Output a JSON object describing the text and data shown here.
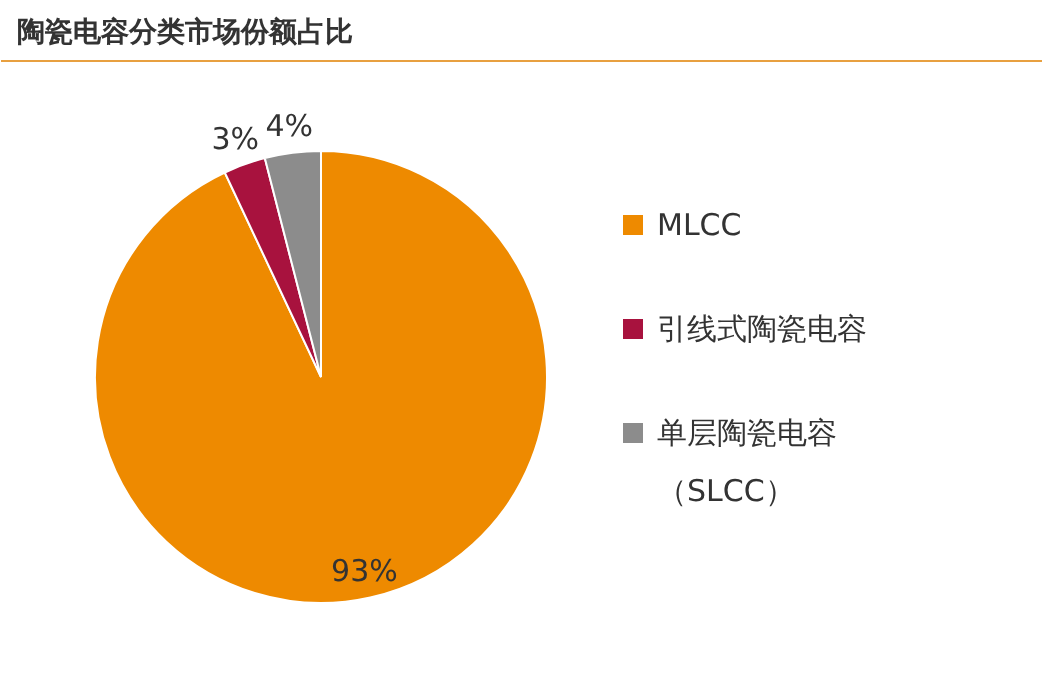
{
  "chart_data": {
    "type": "pie",
    "title": "陶瓷电容分类市场份额占比",
    "categories": [
      "MLCC",
      "引线式陶瓷电容",
      "单层陶瓷电容（SLCC）"
    ],
    "values": [
      93,
      3,
      4
    ],
    "colors": [
      "#ee8a00",
      "#a8123e",
      "#8c8c8c"
    ],
    "value_labels": [
      "93%",
      "3%",
      "4%"
    ],
    "legend": "right"
  }
}
